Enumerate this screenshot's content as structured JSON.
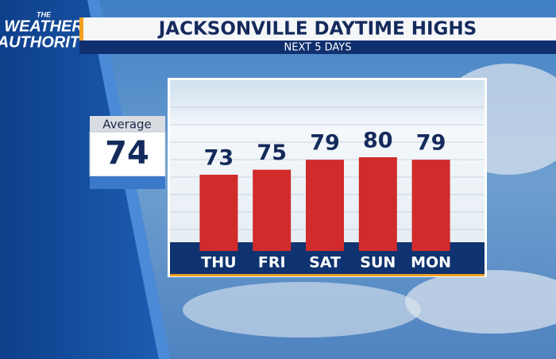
{
  "logo": {
    "lines": [
      "THE",
      "WEATHER",
      "AUTHORITY"
    ]
  },
  "chart_data": {
    "type": "bar",
    "title": "JACKSONVILLE DAYTIME HIGHS",
    "subtitle": "NEXT 5 DAYS",
    "categories": [
      "THU",
      "FRI",
      "SAT",
      "SUN",
      "MON"
    ],
    "values": [
      73,
      75,
      79,
      80,
      79
    ],
    "color": "#d12b2b",
    "average": {
      "label": "Average",
      "value": 74
    }
  }
}
